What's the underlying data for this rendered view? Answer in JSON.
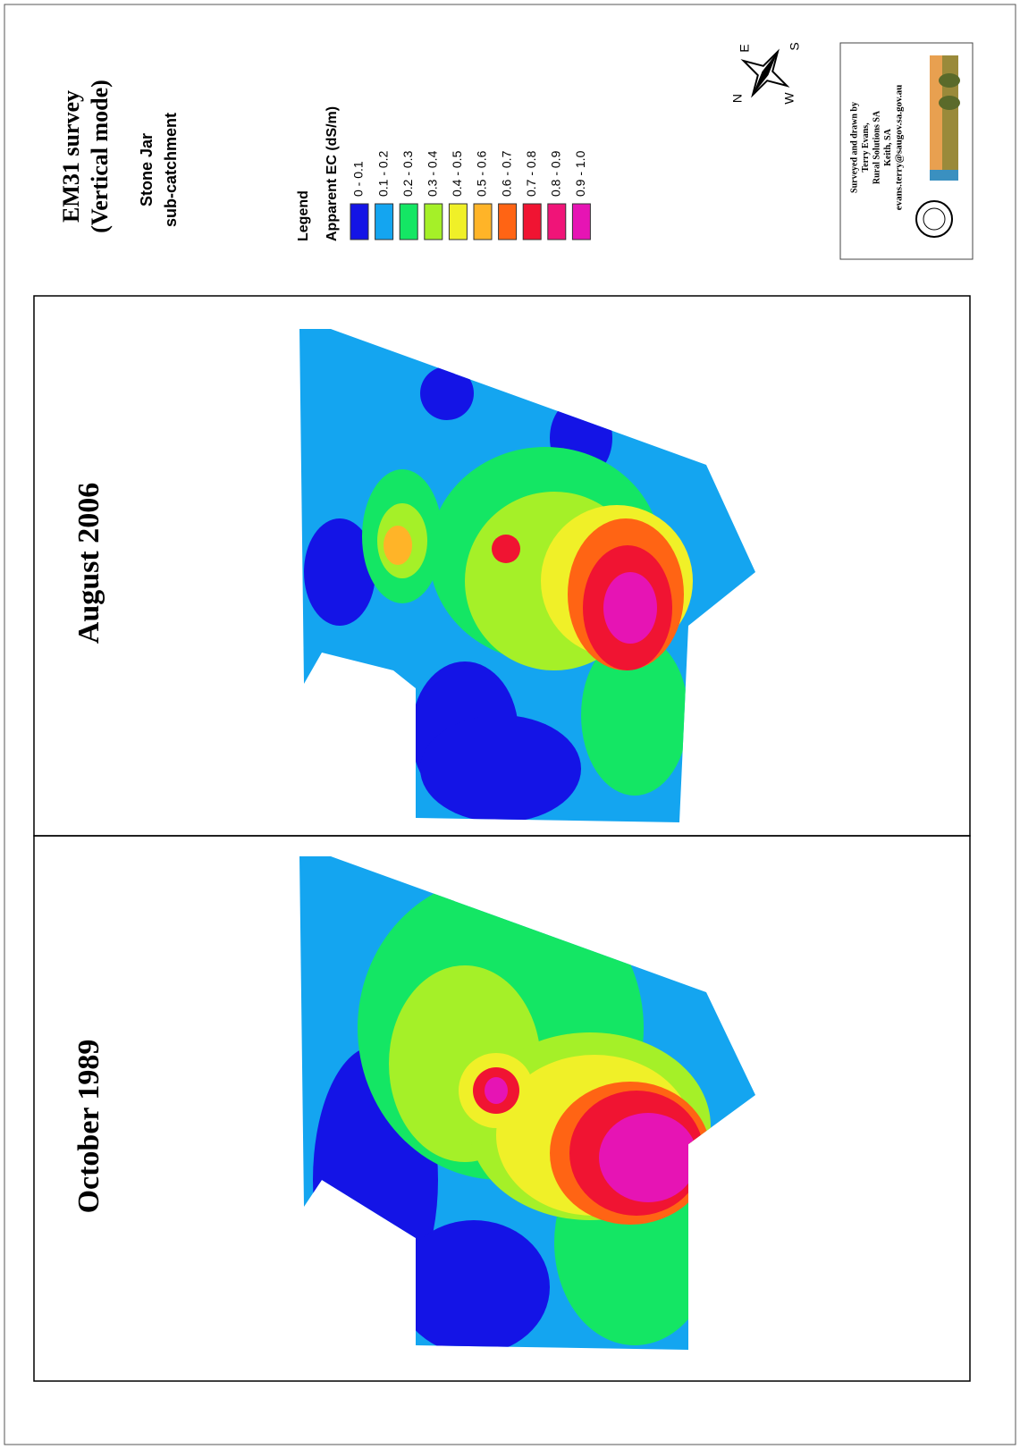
{
  "header": {
    "title": "EM31 survey",
    "subtitle": "(Vertical mode)",
    "area_line1": "Stone Jar",
    "area_line2": "sub-catchment"
  },
  "legend": {
    "heading": "Legend",
    "title": "Apparent EC (dS/m)",
    "items": [
      {
        "label": "0 - 0.1",
        "color": "#1414e6"
      },
      {
        "label": "0.1 - 0.2",
        "color": "#14a5f0"
      },
      {
        "label": "0.2 - 0.3",
        "color": "#14e664"
      },
      {
        "label": "0.3 - 0.4",
        "color": "#a5f028"
      },
      {
        "label": "0.4 - 0.5",
        "color": "#f0f028"
      },
      {
        "label": "0.5 - 0.6",
        "color": "#ffb428"
      },
      {
        "label": "0.6 - 0.7",
        "color": "#ff6414"
      },
      {
        "label": "0.7 - 0.8",
        "color": "#f01432"
      },
      {
        "label": "0.8 - 0.9",
        "color": "#f01478"
      },
      {
        "label": "0.9 - 1.0",
        "color": "#e614b4"
      }
    ]
  },
  "compass": {
    "n": "N",
    "e": "E",
    "s": "S",
    "w": "W"
  },
  "credits": {
    "lines": [
      "Surveyed and drawn by",
      "Terry Evans,",
      "Rural Solutions SA",
      "Keith, SA",
      "evans.terry@saugov.sa.gov.au"
    ]
  },
  "panels": [
    {
      "title": "August 2006"
    },
    {
      "title": "October 1989"
    }
  ]
}
